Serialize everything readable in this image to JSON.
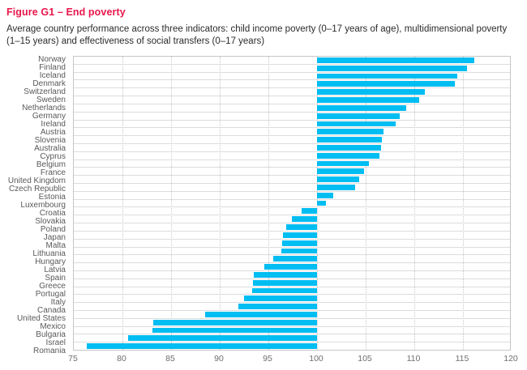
{
  "figure": {
    "title": "Figure G1 – End poverty",
    "subtitle": "Average country performance across three indicators: child income poverty (0–17 years of age), multidimensional poverty (1–15 years) and effectiveness of social transfers (0–17 years)"
  },
  "colors": {
    "title_red": "#E9164B",
    "bar_cyan": "#00BDF2",
    "row_line": "#DCDCDC",
    "plot_border": "#C6C6C6",
    "label_gray": "#58595B"
  },
  "chart_data": {
    "type": "bar",
    "orientation": "horizontal",
    "title": "Figure G1 – End poverty",
    "xlabel": "",
    "ylabel": "",
    "xlim": [
      75,
      120
    ],
    "baseline": 100,
    "grid": "dotted-vertical",
    "legend": "none",
    "x_ticks": [
      75,
      80,
      85,
      90,
      95,
      100,
      105,
      110,
      115,
      120
    ],
    "categories": [
      "Norway",
      "Finland",
      "Iceland",
      "Denmark",
      "Switzerland",
      "Sweden",
      "Netherlands",
      "Germany",
      "Ireland",
      "Austria",
      "Slovenia",
      "Australia",
      "Cyprus",
      "Belgium",
      "France",
      "United Kingdom",
      "Czech Republic",
      "Estonia",
      "Luxembourg",
      "Croatia",
      "Slovakia",
      "Poland",
      "Japan",
      "Malta",
      "Lithuania",
      "Hungary",
      "Latvia",
      "Spain",
      "Greece",
      "Portugal",
      "Italy",
      "Canada",
      "United States",
      "Mexico",
      "Bulgaria",
      "Israel",
      "Romania"
    ],
    "values": [
      116.2,
      115.4,
      114.4,
      114.2,
      111.1,
      110.5,
      109.2,
      108.5,
      108.1,
      106.8,
      106.7,
      106.6,
      106.4,
      105.3,
      104.8,
      104.3,
      103.9,
      101.7,
      100.9,
      98.4,
      97.4,
      96.8,
      96.5,
      96.4,
      96.3,
      95.5,
      94.6,
      93.5,
      93.4,
      93.3,
      92.5,
      91.9,
      88.5,
      83.2,
      83.1,
      80.6,
      76.3
    ]
  }
}
